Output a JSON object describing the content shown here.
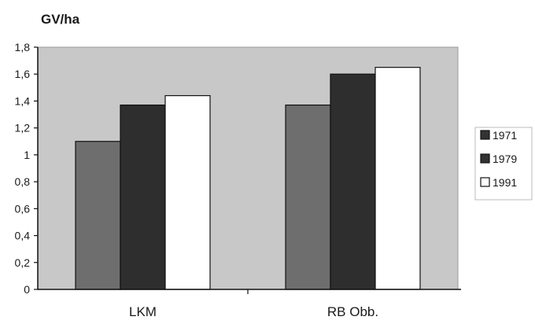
{
  "chart_data": {
    "type": "bar",
    "title": "GV/ha",
    "xlabel": "",
    "ylabel": "",
    "categories": [
      "LKM",
      "RB Obb."
    ],
    "series": [
      {
        "name": "1971",
        "values": [
          1.1,
          1.37
        ]
      },
      {
        "name": "1979",
        "values": [
          1.37,
          1.6
        ]
      },
      {
        "name": "1991",
        "values": [
          1.44,
          1.65
        ]
      }
    ],
    "ylim": [
      0,
      1.8
    ],
    "yticks": [
      "0",
      "0,2",
      "0,4",
      "0,6",
      "0,8",
      "1",
      "1,2",
      "1,4",
      "1,6",
      "1,8"
    ],
    "grid": false,
    "legend_position": "right",
    "colors": {
      "plot_background": "#c8c8c8",
      "series": [
        "#6e6e6e",
        "#2e2e2e",
        "#ffffff"
      ],
      "bar_outline": "#111111"
    }
  }
}
